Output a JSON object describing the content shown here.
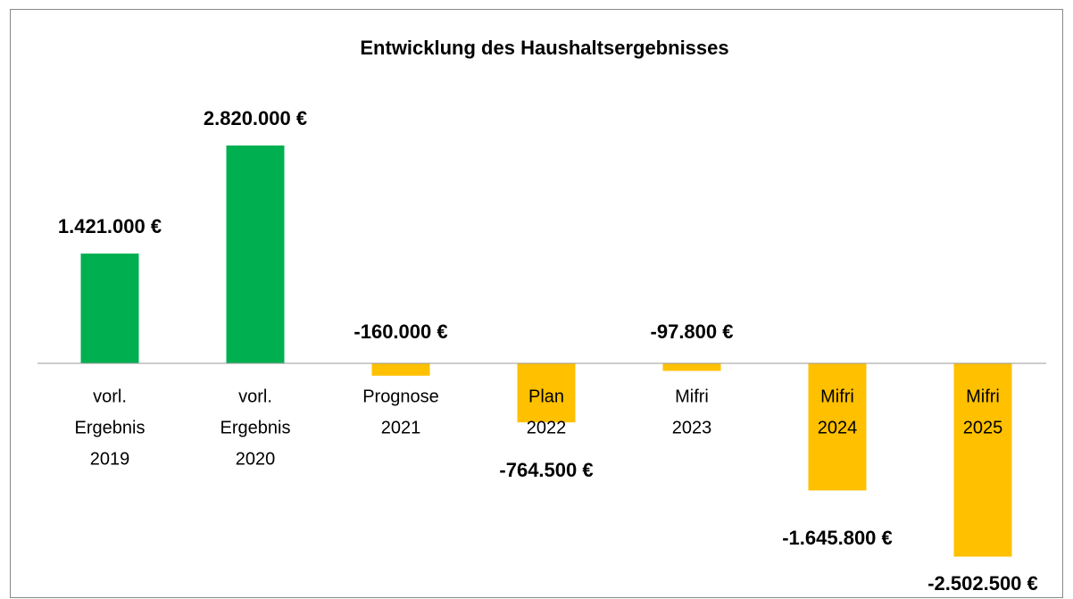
{
  "chart_data": {
    "type": "bar",
    "title": "Entwicklung des Haushaltsergebnisses",
    "categories": [
      [
        "vorl.",
        "Ergebnis",
        "2019"
      ],
      [
        "vorl.",
        "Ergebnis",
        "2020"
      ],
      [
        "Prognose",
        "2021"
      ],
      [
        "Plan",
        "2022"
      ],
      [
        "Mifri",
        "2023"
      ],
      [
        "Mifri",
        "2024"
      ],
      [
        "Mifri",
        "2025"
      ]
    ],
    "values": [
      1421000,
      2820000,
      -160000,
      -764500,
      -97800,
      -1645800,
      -2502500
    ],
    "value_labels": [
      "1.421.000 €",
      "2.820.000 €",
      "-160.000 €",
      "-764.500 €",
      "-97.800 €",
      "-1.645.800 €",
      "-2.502.500 €"
    ],
    "colors": [
      "#00b050",
      "#00b050",
      "#ffc000",
      "#ffc000",
      "#ffc000",
      "#ffc000",
      "#ffc000"
    ]
  }
}
